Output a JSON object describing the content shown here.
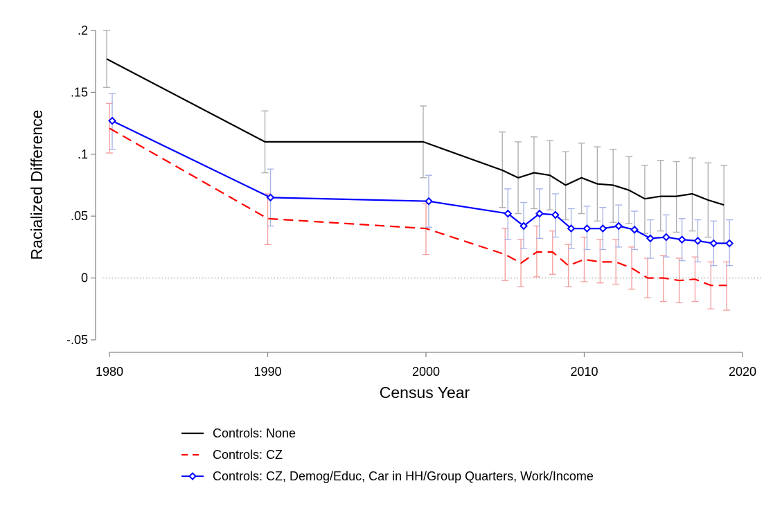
{
  "chart_data": {
    "type": "line",
    "title": "",
    "xlabel": "Census Year",
    "ylabel": "Racialized Difference",
    "xlim": [
      1980,
      2020
    ],
    "ylim": [
      -0.05,
      0.2
    ],
    "xticks": [
      1980,
      1990,
      2000,
      2010,
      2020
    ],
    "xtick_labels": [
      "1980",
      "1990",
      "2000",
      "2010",
      "2020"
    ],
    "yticks": [
      -0.05,
      0,
      0.05,
      0.1,
      0.15,
      0.2
    ],
    "ytick_labels": [
      "-.05",
      "0",
      ".05",
      ".1",
      ".15",
      ".2"
    ],
    "reference_line": {
      "y": 0,
      "style": "dotted"
    },
    "grid": false,
    "legend_position": "bottom",
    "series": [
      {
        "name": "Controls: None",
        "color": "#000000",
        "ci_color": "#b0b0b0",
        "dash": "solid",
        "marker": "none",
        "points": [
          {
            "x": 1980,
            "y": 0.177,
            "lo": 0.154,
            "hi": 0.2
          },
          {
            "x": 1990,
            "y": 0.11,
            "lo": 0.085,
            "hi": 0.135
          },
          {
            "x": 2000,
            "y": 0.11,
            "lo": 0.081,
            "hi": 0.139
          },
          {
            "x": 2005,
            "y": 0.087,
            "lo": 0.057,
            "hi": 0.118
          },
          {
            "x": 2006,
            "y": 0.081,
            "lo": 0.052,
            "hi": 0.11
          },
          {
            "x": 2007,
            "y": 0.085,
            "lo": 0.056,
            "hi": 0.114
          },
          {
            "x": 2008,
            "y": 0.083,
            "lo": 0.055,
            "hi": 0.111
          },
          {
            "x": 2009,
            "y": 0.075,
            "lo": 0.047,
            "hi": 0.102
          },
          {
            "x": 2010,
            "y": 0.081,
            "lo": 0.052,
            "hi": 0.109
          },
          {
            "x": 2011,
            "y": 0.076,
            "lo": 0.046,
            "hi": 0.106
          },
          {
            "x": 2012,
            "y": 0.075,
            "lo": 0.045,
            "hi": 0.104
          },
          {
            "x": 2013,
            "y": 0.071,
            "lo": 0.044,
            "hi": 0.098
          },
          {
            "x": 2014,
            "y": 0.064,
            "lo": 0.036,
            "hi": 0.091
          },
          {
            "x": 2015,
            "y": 0.066,
            "lo": 0.038,
            "hi": 0.095
          },
          {
            "x": 2016,
            "y": 0.066,
            "lo": 0.037,
            "hi": 0.094
          },
          {
            "x": 2017,
            "y": 0.068,
            "lo": 0.038,
            "hi": 0.097
          },
          {
            "x": 2018,
            "y": 0.063,
            "lo": 0.033,
            "hi": 0.093
          },
          {
            "x": 2019,
            "y": 0.059,
            "lo": 0.028,
            "hi": 0.091
          }
        ]
      },
      {
        "name": "Controls: CZ",
        "color": "#ff0000",
        "ci_color": "#f4a0a0",
        "dash": "dashed",
        "marker": "none",
        "points": [
          {
            "x": 1980,
            "y": 0.121,
            "lo": 0.101,
            "hi": 0.141
          },
          {
            "x": 1990,
            "y": 0.048,
            "lo": 0.027,
            "hi": 0.068
          },
          {
            "x": 2000,
            "y": 0.04,
            "lo": 0.019,
            "hi": 0.06
          },
          {
            "x": 2005,
            "y": 0.019,
            "lo": -0.002,
            "hi": 0.04
          },
          {
            "x": 2006,
            "y": 0.012,
            "lo": -0.007,
            "hi": 0.031
          },
          {
            "x": 2007,
            "y": 0.021,
            "lo": 0.001,
            "hi": 0.042
          },
          {
            "x": 2008,
            "y": 0.021,
            "lo": 0.003,
            "hi": 0.038
          },
          {
            "x": 2009,
            "y": 0.01,
            "lo": -0.007,
            "hi": 0.027
          },
          {
            "x": 2010,
            "y": 0.015,
            "lo": -0.003,
            "hi": 0.033
          },
          {
            "x": 2011,
            "y": 0.013,
            "lo": -0.004,
            "hi": 0.031
          },
          {
            "x": 2012,
            "y": 0.013,
            "lo": -0.005,
            "hi": 0.031
          },
          {
            "x": 2013,
            "y": 0.008,
            "lo": -0.009,
            "hi": 0.025
          },
          {
            "x": 2014,
            "y": 0.0,
            "lo": -0.016,
            "hi": 0.016
          },
          {
            "x": 2015,
            "y": 0.0,
            "lo": -0.019,
            "hi": 0.018
          },
          {
            "x": 2016,
            "y": -0.002,
            "lo": -0.02,
            "hi": 0.016
          },
          {
            "x": 2017,
            "y": -0.001,
            "lo": -0.019,
            "hi": 0.017
          },
          {
            "x": 2018,
            "y": -0.006,
            "lo": -0.025,
            "hi": 0.013
          },
          {
            "x": 2019,
            "y": -0.006,
            "lo": -0.026,
            "hi": 0.013
          }
        ]
      },
      {
        "name": "Controls: CZ, Demog/Educ, Car in HH/Group Quarters, Work/Income",
        "color": "#0000ff",
        "ci_color": "#a8b4e8",
        "dash": "solid",
        "marker": "diamond",
        "points": [
          {
            "x": 1980,
            "y": 0.127,
            "lo": 0.104,
            "hi": 0.149
          },
          {
            "x": 1990,
            "y": 0.065,
            "lo": 0.042,
            "hi": 0.088
          },
          {
            "x": 2000,
            "y": 0.062,
            "lo": 0.041,
            "hi": 0.083
          },
          {
            "x": 2005,
            "y": 0.052,
            "lo": 0.031,
            "hi": 0.072
          },
          {
            "x": 2006,
            "y": 0.042,
            "lo": 0.024,
            "hi": 0.061
          },
          {
            "x": 2007,
            "y": 0.052,
            "lo": 0.032,
            "hi": 0.072
          },
          {
            "x": 2008,
            "y": 0.051,
            "lo": 0.033,
            "hi": 0.068
          },
          {
            "x": 2009,
            "y": 0.04,
            "lo": 0.024,
            "hi": 0.056
          },
          {
            "x": 2010,
            "y": 0.04,
            "lo": 0.023,
            "hi": 0.058
          },
          {
            "x": 2011,
            "y": 0.04,
            "lo": 0.023,
            "hi": 0.057
          },
          {
            "x": 2012,
            "y": 0.042,
            "lo": 0.025,
            "hi": 0.059
          },
          {
            "x": 2013,
            "y": 0.039,
            "lo": 0.023,
            "hi": 0.054
          },
          {
            "x": 2014,
            "y": 0.032,
            "lo": 0.016,
            "hi": 0.047
          },
          {
            "x": 2015,
            "y": 0.033,
            "lo": 0.017,
            "hi": 0.051
          },
          {
            "x": 2016,
            "y": 0.031,
            "lo": 0.014,
            "hi": 0.048
          },
          {
            "x": 2017,
            "y": 0.03,
            "lo": 0.013,
            "hi": 0.047
          },
          {
            "x": 2018,
            "y": 0.028,
            "lo": 0.01,
            "hi": 0.046
          },
          {
            "x": 2019,
            "y": 0.028,
            "lo": 0.01,
            "hi": 0.047
          }
        ]
      }
    ]
  }
}
